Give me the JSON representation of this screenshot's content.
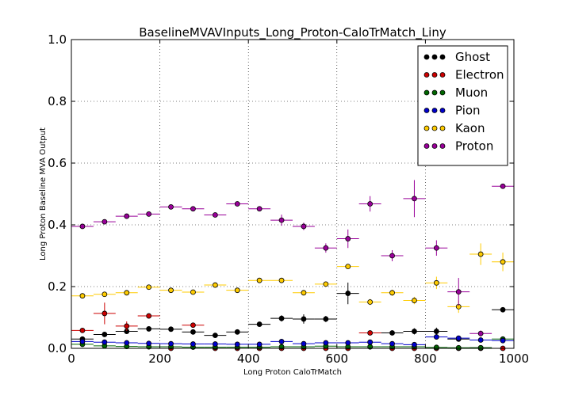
{
  "chart_data": {
    "type": "scatter",
    "title": "BaselineMVAVInputs_Long_Proton-CaloTrMatch_Liny",
    "xlabel": "Long Proton CaloTrMatch",
    "ylabel": "Long Proton Baseline MVA Output",
    "xlim": [
      0,
      1000
    ],
    "ylim": [
      0.0,
      1.0
    ],
    "xticks": [
      "0",
      "200",
      "400",
      "600",
      "800",
      "1000"
    ],
    "yticks": [
      "0.0",
      "0.2",
      "0.4",
      "0.6",
      "0.8",
      "1.0"
    ],
    "grid": true,
    "legend_position": "top-right",
    "bin_half_width": 25,
    "series": [
      {
        "name": "Ghost",
        "color": "#000000",
        "x": [
          25,
          75,
          125,
          175,
          225,
          275,
          325,
          375,
          425,
          475,
          525,
          575,
          625,
          675,
          725,
          775,
          825,
          875,
          925,
          975
        ],
        "y": [
          0.03,
          0.045,
          0.055,
          0.063,
          0.062,
          0.053,
          0.042,
          0.053,
          0.078,
          0.097,
          0.095,
          0.095,
          0.178,
          0.005,
          0.05,
          0.055,
          0.055,
          0.03,
          0.002,
          0.125
        ],
        "yerr": [
          0.004,
          0.004,
          0.004,
          0.004,
          0.004,
          0.004,
          0.004,
          0.004,
          0.006,
          0.01,
          0.015,
          0.01,
          0.035,
          0.005,
          0.008,
          0.01,
          0.012,
          0.008,
          0.002,
          0.004
        ]
      },
      {
        "name": "Electron",
        "color": "#cc0000",
        "x": [
          25,
          75,
          125,
          175,
          225,
          275,
          325,
          375,
          425,
          475,
          525,
          575,
          625,
          675,
          725,
          775,
          825,
          875,
          925,
          975
        ],
        "y": [
          0.058,
          0.113,
          0.072,
          0.105,
          0.0,
          0.075,
          0.0,
          0.0,
          0.0,
          0.0,
          0.0,
          0.0,
          0.0,
          0.05,
          0.0,
          0.0,
          0.0,
          0.0,
          0.0,
          0.0
        ],
        "yerr": [
          0.005,
          0.035,
          0.015,
          0.006,
          0.0,
          0.006,
          0.0,
          0.0,
          0.0,
          0.0,
          0.0,
          0.0,
          0.0,
          0.004,
          0.0,
          0.0,
          0.0,
          0.0,
          0.0,
          0.0
        ]
      },
      {
        "name": "Muon",
        "color": "#006600",
        "x": [
          25,
          75,
          125,
          175,
          225,
          275,
          325,
          375,
          425,
          475,
          525,
          575,
          625,
          675,
          725,
          775,
          825,
          875,
          925,
          975
        ],
        "y": [
          0.013,
          0.008,
          0.006,
          0.005,
          0.005,
          0.004,
          0.004,
          0.004,
          0.004,
          0.005,
          0.005,
          0.007,
          0.005,
          0.005,
          0.005,
          0.005,
          0.003,
          0.002,
          0.002,
          0.03
        ],
        "yerr": [
          0.002,
          0.002,
          0.002,
          0.002,
          0.002,
          0.002,
          0.002,
          0.002,
          0.002,
          0.002,
          0.002,
          0.002,
          0.002,
          0.002,
          0.002,
          0.002,
          0.002,
          0.002,
          0.002,
          0.003
        ]
      },
      {
        "name": "Pion",
        "color": "#0000cc",
        "x": [
          25,
          75,
          125,
          175,
          225,
          275,
          325,
          375,
          425,
          475,
          525,
          575,
          625,
          675,
          725,
          775,
          825,
          875,
          925,
          975
        ],
        "y": [
          0.022,
          0.02,
          0.018,
          0.016,
          0.015,
          0.014,
          0.014,
          0.013,
          0.013,
          0.022,
          0.015,
          0.018,
          0.018,
          0.02,
          0.015,
          0.012,
          0.037,
          0.033,
          0.027,
          0.025
        ],
        "yerr": [
          0.002,
          0.002,
          0.002,
          0.002,
          0.002,
          0.002,
          0.002,
          0.002,
          0.002,
          0.003,
          0.003,
          0.003,
          0.003,
          0.004,
          0.004,
          0.004,
          0.006,
          0.006,
          0.006,
          0.005
        ]
      },
      {
        "name": "Kaon",
        "color": "#ffcc00",
        "x": [
          25,
          75,
          125,
          175,
          225,
          275,
          325,
          375,
          425,
          475,
          525,
          575,
          625,
          675,
          725,
          775,
          825,
          875,
          925,
          975
        ],
        "y": [
          0.17,
          0.175,
          0.18,
          0.198,
          0.188,
          0.182,
          0.205,
          0.188,
          0.22,
          0.22,
          0.18,
          0.208,
          0.265,
          0.15,
          0.18,
          0.155,
          0.212,
          0.135,
          0.305,
          0.28
        ],
        "yerr": [
          0.004,
          0.004,
          0.004,
          0.004,
          0.004,
          0.004,
          0.004,
          0.004,
          0.005,
          0.005,
          0.006,
          0.006,
          0.008,
          0.01,
          0.01,
          0.012,
          0.02,
          0.02,
          0.035,
          0.03
        ]
      },
      {
        "name": "Proton",
        "color": "#990099",
        "x": [
          25,
          75,
          125,
          175,
          225,
          275,
          325,
          375,
          425,
          475,
          525,
          575,
          625,
          675,
          725,
          775,
          825,
          875,
          925,
          975
        ],
        "y": [
          0.395,
          0.41,
          0.428,
          0.435,
          0.458,
          0.452,
          0.432,
          0.468,
          0.452,
          0.415,
          0.395,
          0.325,
          0.355,
          0.468,
          0.3,
          0.485,
          0.325,
          0.183,
          0.048,
          0.525
        ],
        "yerr": [
          0.004,
          0.004,
          0.004,
          0.004,
          0.004,
          0.004,
          0.004,
          0.004,
          0.008,
          0.018,
          0.012,
          0.015,
          0.03,
          0.025,
          0.018,
          0.06,
          0.025,
          0.045,
          0.01,
          0.004
        ]
      }
    ]
  }
}
